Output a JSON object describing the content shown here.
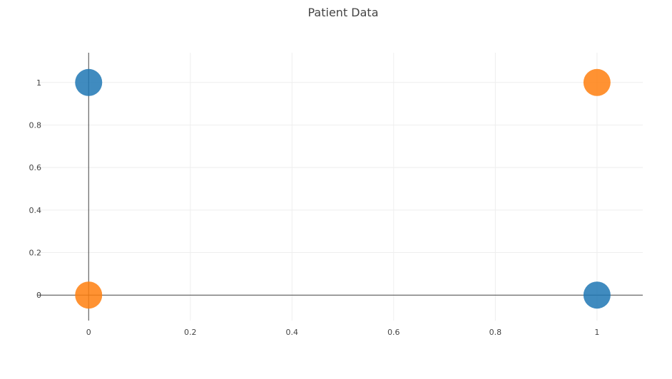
{
  "chart_data": {
    "type": "scatter",
    "title": "Patient Data",
    "xlabel": "",
    "ylabel": "",
    "xlim": [
      -0.1,
      1.09
    ],
    "ylim": [
      -0.12,
      1.14
    ],
    "x_ticks": [
      "0",
      "0.2",
      "0.4",
      "0.6",
      "0.8",
      "1"
    ],
    "y_ticks": [
      "0",
      "0.2",
      "0.4",
      "0.6",
      "0.8",
      "1"
    ],
    "x_tick_values": [
      0,
      0.2,
      0.4,
      0.6,
      0.8,
      1
    ],
    "y_tick_values": [
      0,
      0.2,
      0.4,
      0.6,
      0.8,
      1
    ],
    "grid": true,
    "legend": "none",
    "series": [
      {
        "color": "#1f77b4",
        "points": [
          {
            "x": 0,
            "y": 1
          },
          {
            "x": 1,
            "y": 0
          }
        ]
      },
      {
        "color": "#ff7f0e",
        "points": [
          {
            "x": 0,
            "y": 0
          },
          {
            "x": 1,
            "y": 1
          }
        ]
      }
    ]
  }
}
